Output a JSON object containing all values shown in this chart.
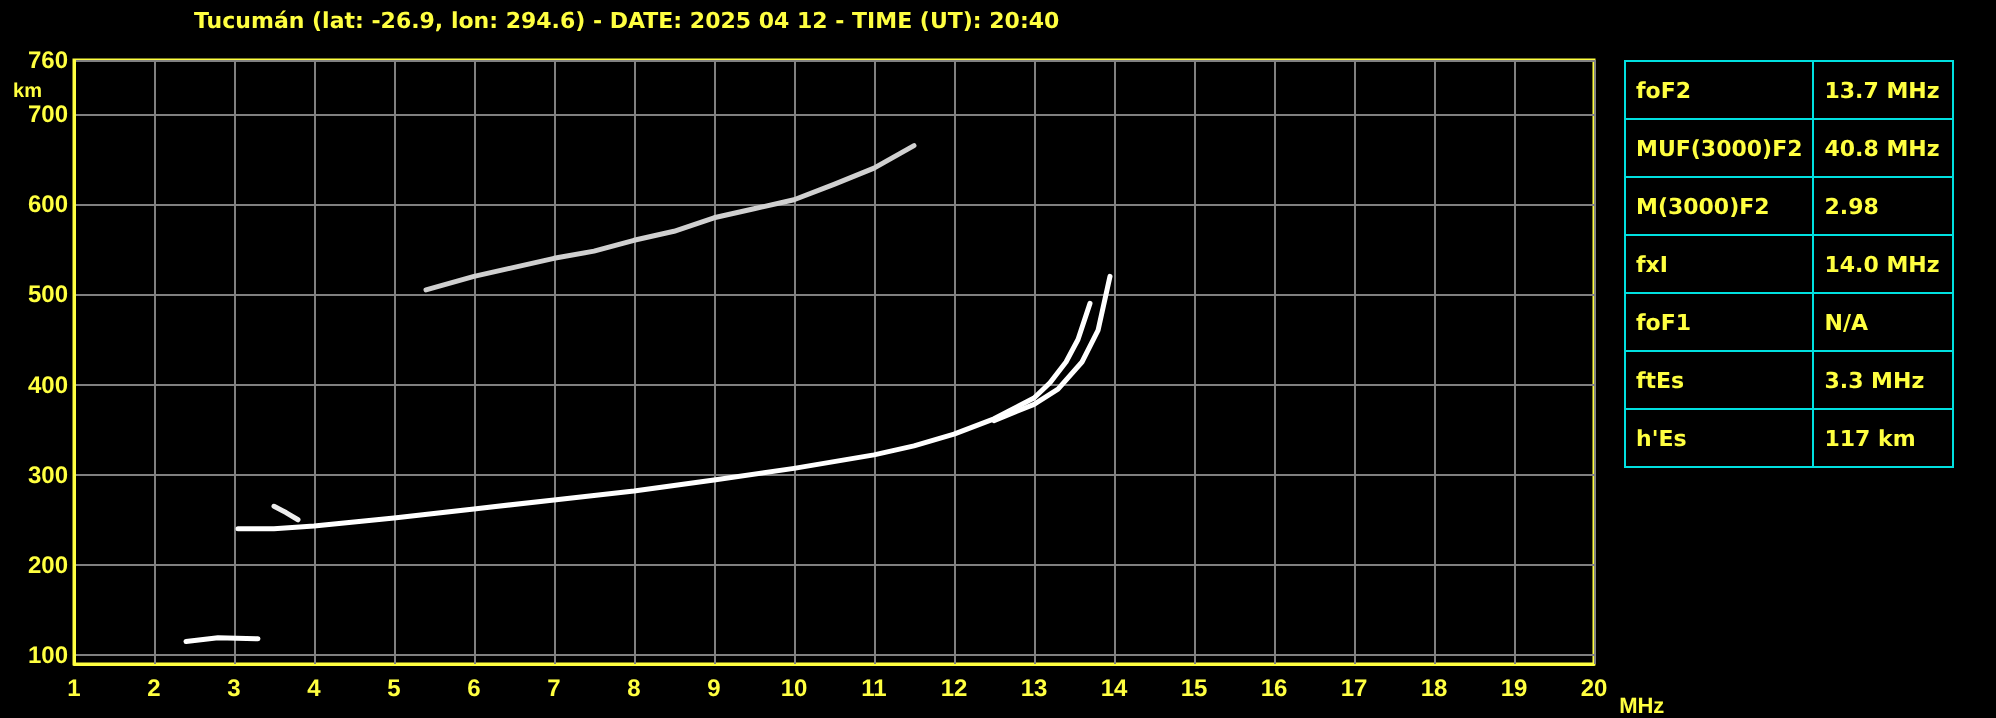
{
  "chart_data": {
    "type": "line",
    "title": "Tucumán (lat: -26.9, lon: 294.6) - DATE: 2025 04 12 - TIME (UT): 20:40",
    "xlabel": "MHz",
    "ylabel": "km",
    "xlim": [
      1,
      20
    ],
    "xticks": [
      1,
      2,
      3,
      4,
      5,
      6,
      7,
      8,
      9,
      10,
      11,
      12,
      13,
      14,
      15,
      16,
      17,
      18,
      19,
      20
    ],
    "ylim": [
      90,
      760
    ],
    "yticks": [
      100,
      200,
      300,
      400,
      500,
      600,
      700,
      760
    ],
    "grid": true,
    "marker": "none",
    "line_style": "solid",
    "series": [
      {
        "color": "#ffffff",
        "x": [
          3.05,
          3.5,
          4,
          5,
          6,
          7,
          8,
          9,
          10,
          11,
          11.5,
          12,
          12.5,
          13,
          13.2,
          13.4,
          13.55,
          13.7
        ],
        "values": [
          240,
          240,
          243,
          252,
          262,
          272,
          282,
          294,
          307,
          322,
          332,
          345,
          362,
          385,
          402,
          425,
          450,
          490
        ]
      },
      {
        "color": "#ffffff",
        "x": [
          12.5,
          13,
          13.3,
          13.6,
          13.8,
          13.95
        ],
        "values": [
          360,
          378,
          395,
          425,
          460,
          520
        ]
      },
      {
        "color": "#eeeeee",
        "x": [
          3.5,
          3.65,
          3.8
        ],
        "values": [
          265,
          258,
          250
        ]
      },
      {
        "color": "#ffffff",
        "x": [
          2.4,
          2.8,
          3.3
        ],
        "values": [
          115,
          119,
          118
        ]
      },
      {
        "color": "#d0d0d0",
        "x": [
          5.4,
          6,
          7,
          7.5,
          8,
          8.5,
          9,
          9.5,
          10,
          10.5,
          11,
          11.5
        ],
        "values": [
          505,
          520,
          540,
          548,
          560,
          570,
          585,
          595,
          605,
          622,
          640,
          665
        ]
      }
    ],
    "annotations": [
      "foF2",
      "13.7 MHz",
      "MUF(3000)F2",
      "40.8 MHz",
      "M(3000)F2",
      "2.98",
      "fxI",
      "14.0 MHz",
      "foF1",
      "N/A",
      "ftEs",
      "3.3 MHz",
      "h'Es",
      "117 km"
    ]
  }
}
